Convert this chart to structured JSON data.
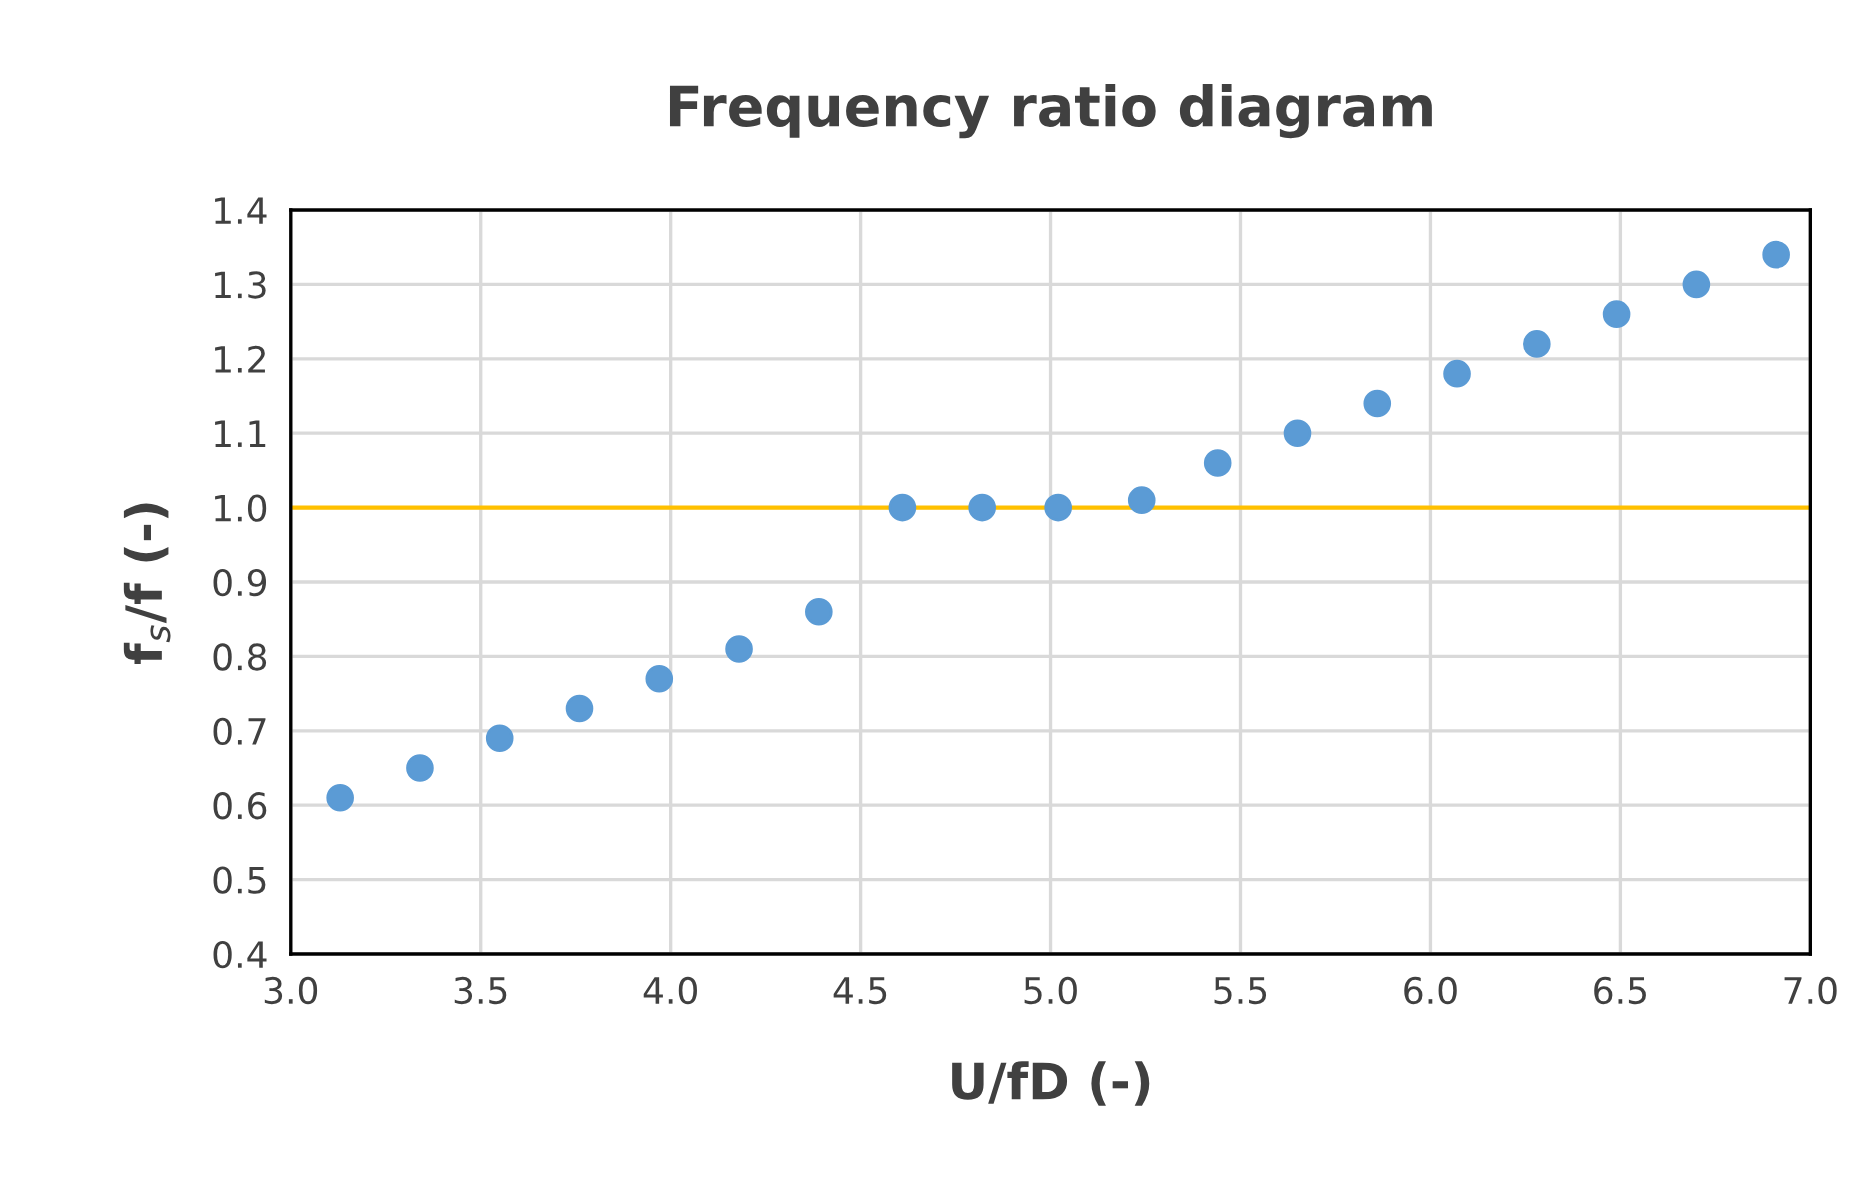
{
  "chart_data": {
    "type": "scatter",
    "title": "Frequency ratio diagram",
    "xlabel": "U/fD (-)",
    "ylabel": "f$_{s}$/f (-)",
    "x": [
      3.13,
      3.34,
      3.55,
      3.76,
      3.97,
      4.18,
      4.39,
      4.61,
      4.82,
      5.02,
      5.24,
      5.44,
      5.65,
      5.86,
      6.07,
      6.28,
      6.49,
      6.7,
      6.91
    ],
    "series": [
      {
        "color": "#5b9bd5",
        "values": [
          0.61,
          0.65,
          0.69,
          0.73,
          0.77,
          0.81,
          0.86,
          1.0,
          1.0,
          1.0,
          1.01,
          1.06,
          1.1,
          1.14,
          1.18,
          1.22,
          1.26,
          1.3,
          1.34
        ]
      }
    ],
    "xlim": [
      3.0,
      7.0
    ],
    "xticks": [
      {
        "value": 3.0,
        "label": "3.0"
      },
      {
        "value": 3.5,
        "label": "3.5"
      },
      {
        "value": 4.0,
        "label": "4.0"
      },
      {
        "value": 4.5,
        "label": "4.5"
      },
      {
        "value": 5.0,
        "label": "5.0"
      },
      {
        "value": 5.5,
        "label": "5.5"
      },
      {
        "value": 6.0,
        "label": "6.0"
      },
      {
        "value": 6.5,
        "label": "6.5"
      },
      {
        "value": 7.0,
        "label": "7.0"
      }
    ],
    "ylim": [
      0.4,
      1.4
    ],
    "yticks": [
      {
        "value": 0.4,
        "label": "0.4"
      },
      {
        "value": 0.5,
        "label": "0.5"
      },
      {
        "value": 0.6,
        "label": "0.6"
      },
      {
        "value": 0.7,
        "label": "0.7"
      },
      {
        "value": 0.8,
        "label": "0.8"
      },
      {
        "value": 0.9,
        "label": "0.9"
      },
      {
        "value": 1.0,
        "label": "1.0"
      },
      {
        "value": 1.1,
        "label": "1.1"
      },
      {
        "value": 1.2,
        "label": "1.2"
      },
      {
        "value": 1.3,
        "label": "1.3"
      },
      {
        "value": 1.4,
        "label": "1.4"
      }
    ],
    "ref_lines": [
      {
        "axis": "y",
        "value": 1.0,
        "color": "#ffc000",
        "line_style": "solid"
      }
    ],
    "grid": true,
    "marker": "circle"
  }
}
